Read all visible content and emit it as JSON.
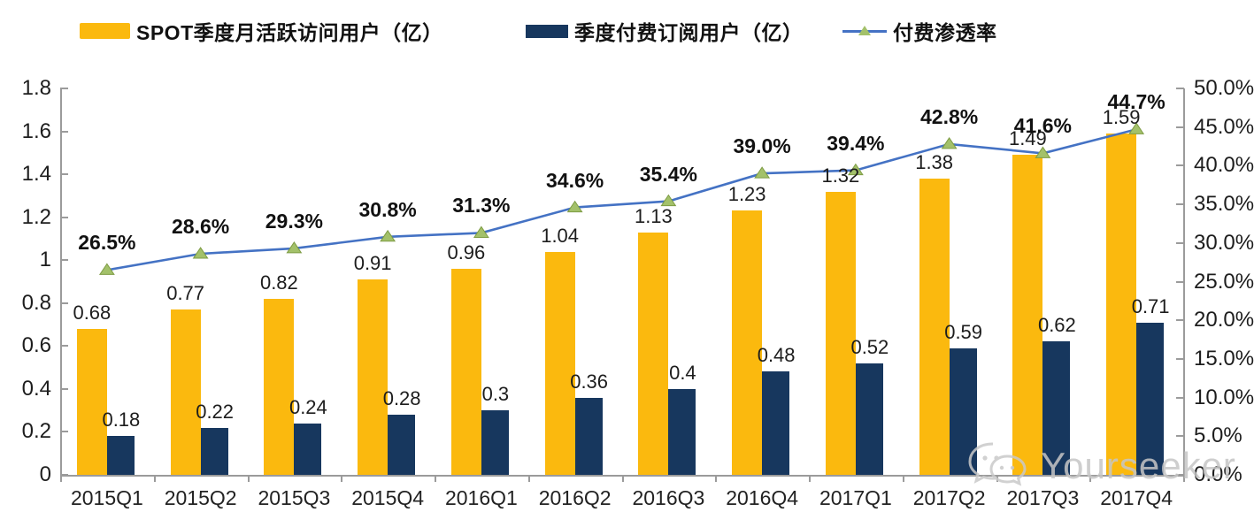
{
  "legend": [
    {
      "label": "SPOT季度月活跃访问用户（亿）",
      "type": "bar",
      "color": "#FBB90E"
    },
    {
      "label": "季度付费订阅用户（亿）",
      "type": "bar",
      "color": "#17375E"
    },
    {
      "label": "付费渗透率",
      "type": "line",
      "color": "#4472C4",
      "marker_color": "#A3C16A"
    }
  ],
  "chart_data": {
    "type": "bar+line",
    "categories": [
      "2015Q1",
      "2015Q2",
      "2015Q3",
      "2015Q4",
      "2016Q1",
      "2016Q2",
      "2016Q3",
      "2016Q4",
      "2017Q1",
      "2017Q2",
      "2017Q3",
      "2017Q4"
    ],
    "series": [
      {
        "name": "SPOT季度月活跃访问用户（亿）",
        "type": "bar",
        "axis": "left",
        "color": "#FBB90E",
        "values": [
          0.68,
          0.77,
          0.82,
          0.91,
          0.96,
          1.04,
          1.13,
          1.23,
          1.32,
          1.38,
          1.49,
          1.59
        ],
        "labels": [
          "0.68",
          "0.77",
          "0.82",
          "0.91",
          "0.96",
          "1.04",
          "1.13",
          "1.23",
          "1.32",
          "1.38",
          "1.49",
          "1.59"
        ]
      },
      {
        "name": "季度付费订阅用户（亿）",
        "type": "bar",
        "axis": "left",
        "color": "#17375E",
        "values": [
          0.18,
          0.22,
          0.24,
          0.28,
          0.3,
          0.36,
          0.4,
          0.48,
          0.52,
          0.59,
          0.62,
          0.71
        ],
        "labels": [
          "0.18",
          "0.22",
          "0.24",
          "0.28",
          "0.3",
          "0.36",
          "0.4",
          "0.48",
          "0.52",
          "0.59",
          "0.62",
          "0.71"
        ]
      },
      {
        "name": "付费渗透率",
        "type": "line",
        "axis": "right",
        "color": "#4472C4",
        "marker": "triangle",
        "marker_color": "#A3C16A",
        "marker_edge": "#7E9C44",
        "values": [
          26.5,
          28.6,
          29.3,
          30.8,
          31.3,
          34.6,
          35.4,
          39.0,
          39.4,
          42.8,
          41.6,
          44.7
        ],
        "labels": [
          "26.5%",
          "28.6%",
          "29.3%",
          "30.8%",
          "31.3%",
          "34.6%",
          "35.4%",
          "39.0%",
          "39.4%",
          "42.8%",
          "41.6%",
          "44.7%"
        ]
      }
    ],
    "left_axis": {
      "min": 0,
      "max": 1.8,
      "tick_labels": [
        "1.8",
        "1.6",
        "1.4",
        "1.2",
        "1",
        "0.8",
        "0.6",
        "0.4",
        "0.2",
        "0"
      ]
    },
    "right_axis": {
      "min": 0,
      "max": 50,
      "tick_labels": [
        "50.0%",
        "45.0%",
        "40.0%",
        "35.0%",
        "30.0%",
        "25.0%",
        "20.0%",
        "15.0%",
        "10.0%",
        "5.0%",
        "0.0%"
      ]
    },
    "grid": false,
    "legend_position": "top"
  },
  "watermark": {
    "text": "Yourseeker",
    "icon": "wechat-icon"
  }
}
